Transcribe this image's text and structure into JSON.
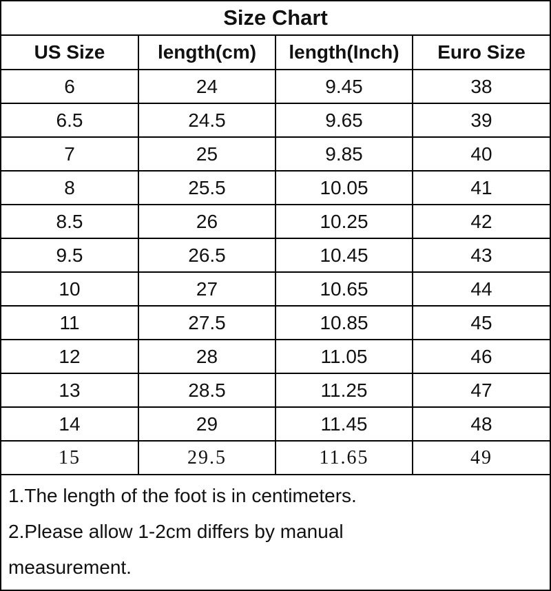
{
  "title": "Size Chart",
  "table": {
    "headers": [
      "US Size",
      "length(cm)",
      "length(Inch)",
      "Euro Size"
    ],
    "rows": [
      [
        "6",
        "24",
        "9.45",
        "38"
      ],
      [
        "6.5",
        "24.5",
        "9.65",
        "39"
      ],
      [
        "7",
        "25",
        "9.85",
        "40"
      ],
      [
        "8",
        "25.5",
        "10.05",
        "41"
      ],
      [
        "8.5",
        "26",
        "10.25",
        "42"
      ],
      [
        "9.5",
        "26.5",
        "10.45",
        "43"
      ],
      [
        "10",
        "27",
        "10.65",
        "44"
      ],
      [
        "11",
        "27.5",
        "10.85",
        "45"
      ],
      [
        "12",
        "28",
        "11.05",
        "46"
      ],
      [
        "13",
        "28.5",
        "11.25",
        "47"
      ],
      [
        "14",
        "29",
        "11.45",
        "48"
      ],
      [
        "15",
        "29.5",
        "11.65",
        "49"
      ]
    ]
  },
  "notes": [
    "1.The length of the foot is in centimeters.",
    "2.Please allow 1-2cm differs by manual measurement."
  ]
}
